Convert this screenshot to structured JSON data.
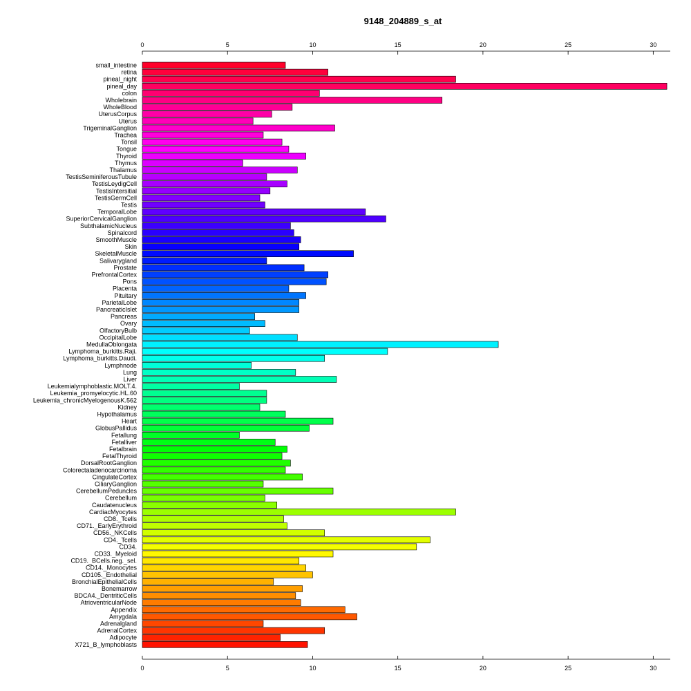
{
  "chart_data": {
    "type": "bar",
    "orientation": "horizontal",
    "title": "9148_204889_s_at",
    "xlabel": "",
    "ylabel": "",
    "xlim": [
      0,
      31
    ],
    "xticks": [
      0,
      5,
      10,
      15,
      20,
      25,
      30
    ],
    "axes": [
      "top",
      "bottom"
    ],
    "grid": false,
    "palette": "rainbow",
    "categories": [
      "small_intestine",
      "retina",
      "pineal_night",
      "pineal_day",
      "colon",
      "Wholebrain",
      "WholeBlood",
      "UterusCorpus",
      "Uterus",
      "TrigeminalGanglion",
      "Trachea",
      "Tonsil",
      "Tongue",
      "Thyroid",
      "Thymus",
      "Thalamus",
      "TestisSeminiferousTubule",
      "TestisLeydigCell",
      "TestisIntersitial",
      "TestisGermCell",
      "Testis",
      "TemporalLobe",
      "SuperiorCervicalGanglion",
      "SubthalamicNucleus",
      "Spinalcord",
      "SmoothMuscle",
      "Skin",
      "SkeletalMuscle",
      "Salivarygland",
      "Prostate",
      "PrefrontalCortex",
      "Pons",
      "Placenta",
      "Pituitary",
      "ParietalLobe",
      "PancreaticIslet",
      "Pancreas",
      "Ovary",
      "OlfactoryBulb",
      "OccipitalLobe",
      "MedullaOblongata",
      "Lymphoma_burkitts.Raji.",
      "Lymphoma_burkitts.Daudi.",
      "Lymphnode",
      "Lung",
      "Liver",
      "Leukemialymphoblastic.MOLT.4.",
      "Leukemia_promyelocytic.HL.60",
      "Leukemia_chronicMyelogenousK.562",
      "Kidney",
      "Hypothalamus",
      "Heart",
      "GlobusPallidus",
      "Fetallung",
      "Fetalliver",
      "Fetalbrain",
      "FetalThyroid",
      "DorsalRootGanglion",
      "Colorectaladenocarcinoma",
      "CingulateCortex",
      "CiliaryGanglion",
      "CerebellumPeduncles",
      "Cerebellum",
      "Caudatenucleus",
      "CardiacMyocytes",
      "CD8._Tcells",
      "CD71._EarlyErythroid",
      "CD56._NKCells",
      "CD4._Tcells",
      "CD34.",
      "CD33._Myeloid",
      "CD19._BCells.neg._sel.",
      "CD14._Monocytes",
      "CD105._Endothelial",
      "BronchialEpithelialCells",
      "Bonemarrow",
      "BDCA4._DentriticCells",
      "AtrioventricularNode",
      "Appendix",
      "Amygdala",
      "Adrenalgland",
      "AdrenalCortex",
      "Adipocyte",
      "X721_B_lymphoblasts"
    ],
    "values": [
      8.4,
      10.9,
      18.4,
      30.8,
      10.4,
      17.6,
      8.8,
      7.6,
      6.5,
      11.3,
      7.1,
      8.2,
      8.6,
      9.6,
      5.9,
      9.1,
      7.3,
      8.5,
      7.5,
      6.9,
      7.2,
      13.1,
      14.3,
      8.7,
      8.9,
      9.3,
      9.2,
      12.4,
      7.3,
      9.5,
      10.9,
      10.8,
      8.6,
      9.6,
      9.2,
      9.2,
      6.6,
      7.2,
      6.3,
      9.1,
      20.9,
      14.4,
      10.7,
      6.4,
      9.0,
      11.4,
      5.7,
      7.3,
      7.3,
      6.9,
      8.4,
      11.2,
      9.8,
      5.7,
      7.8,
      8.5,
      8.2,
      8.7,
      8.4,
      9.4,
      7.1,
      11.2,
      7.2,
      7.9,
      18.4,
      8.3,
      8.5,
      10.7,
      16.9,
      16.1,
      11.2,
      9.2,
      9.6,
      10.0,
      7.7,
      9.4,
      9.0,
      9.3,
      11.9,
      12.6,
      7.1,
      10.7,
      8.1,
      9.7
    ]
  }
}
